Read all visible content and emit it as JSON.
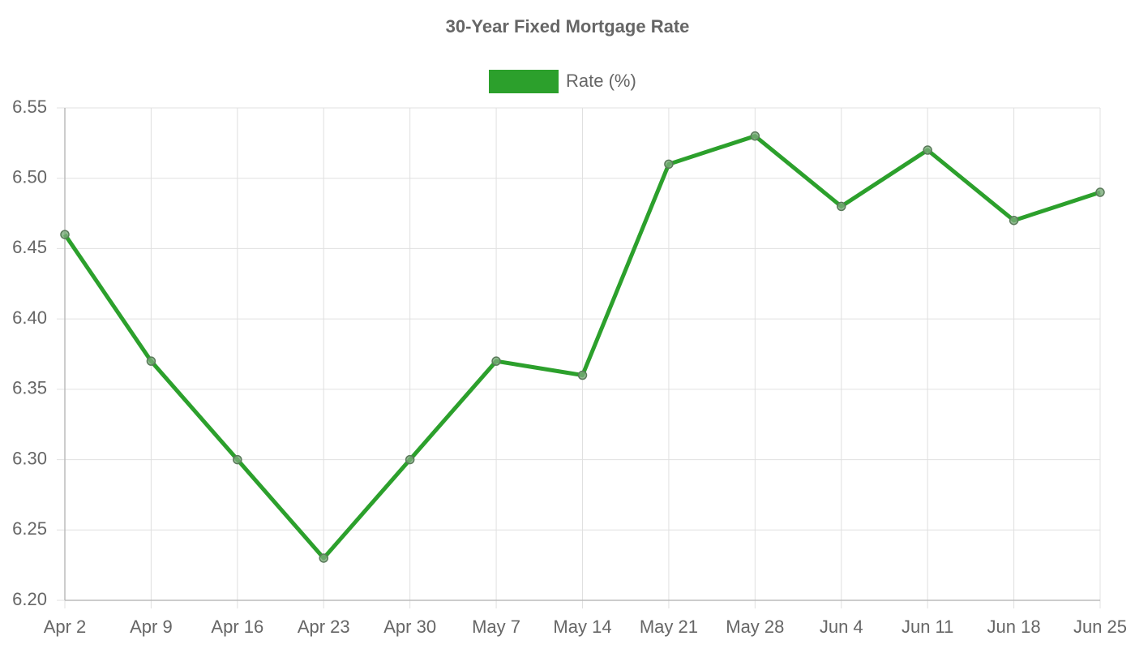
{
  "chart_data": {
    "type": "line",
    "title": "30-Year Fixed Mortgage Rate",
    "categories": [
      "Apr 2",
      "Apr 9",
      "Apr 16",
      "Apr 23",
      "Apr 30",
      "May 7",
      "May 14",
      "May 21",
      "May 28",
      "Jun 4",
      "Jun 11",
      "Jun 18",
      "Jun 25"
    ],
    "series": [
      {
        "name": "Rate (%)",
        "color": "#2ca02c",
        "values": [
          6.46,
          6.37,
          6.3,
          6.23,
          6.3,
          6.37,
          6.36,
          6.51,
          6.53,
          6.48,
          6.52,
          6.47,
          6.49
        ]
      }
    ],
    "ylim": [
      6.2,
      6.55
    ],
    "yticks": [
      {
        "value": 6.2,
        "label": "6.20"
      },
      6.25,
      {
        "value": 6.3,
        "label": "6.30"
      },
      6.35,
      {
        "value": 6.4,
        "label": "6.40"
      },
      6.45,
      {
        "value": 6.5,
        "label": "6.50"
      },
      6.55
    ],
    "grid": true,
    "legend": "top"
  }
}
